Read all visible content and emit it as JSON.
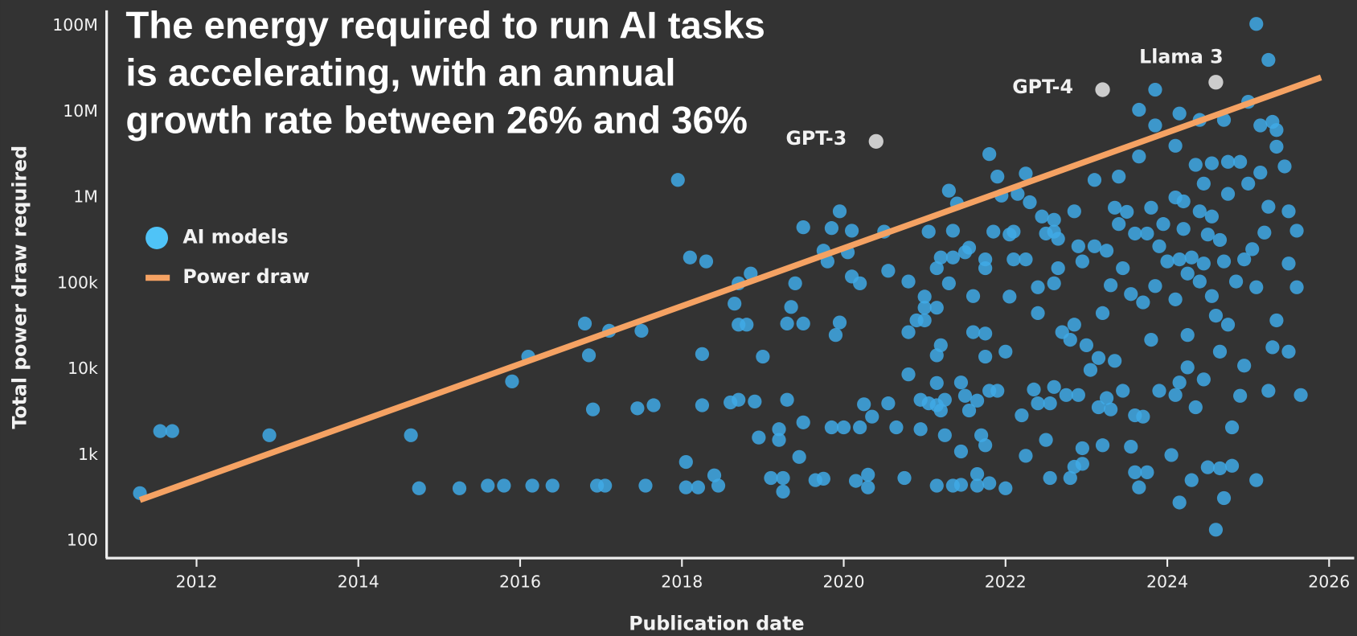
{
  "chart_data": {
    "type": "scatter",
    "title": "The energy required to run AI tasks is accelerating, with an annual growth rate between 26% and 36%",
    "xlabel": "Publication date",
    "ylabel": "Total power draw required",
    "log_y": true,
    "xlim": [
      2010.91,
      2026.31
    ],
    "xticks": [
      2012,
      2014,
      2016,
      2018,
      2020,
      2022,
      2024,
      2026
    ],
    "ylim": [
      63,
      151000000
    ],
    "yticks": [
      100,
      {
        "value": 1000,
        "label": "1k"
      },
      {
        "value": 10000,
        "label": "10k"
      },
      {
        "value": 100000,
        "label": "100k"
      },
      {
        "value": 1000000,
        "label": "1M"
      },
      {
        "value": 10000000,
        "label": "10M"
      },
      {
        "value": 100000000,
        "label": "100M"
      }
    ],
    "legend": "upper left",
    "series": [
      {
        "name": "AI models",
        "color": "#3fa9e6",
        "x": [
          2011.3,
          2011.55,
          2011.7,
          2012.9,
          2014.65,
          2014.75,
          2015.25,
          2015.6,
          2015.8,
          2015.9,
          2016.1,
          2016.15,
          2016.4,
          2016.8,
          2016.85,
          2016.9,
          2016.95,
          2017.05,
          2017.1,
          2017.45,
          2017.5,
          2017.55,
          2017.65,
          2017.95,
          2018.05,
          2018.05,
          2018.1,
          2018.2,
          2018.25,
          2018.25,
          2018.3,
          2018.4,
          2018.45,
          2018.6,
          2018.65,
          2018.7,
          2018.7,
          2018.7,
          2018.8,
          2018.85,
          2018.9,
          2018.95,
          2019.0,
          2019.1,
          2019.2,
          2019.2,
          2019.25,
          2019.25,
          2019.3,
          2019.3,
          2019.35,
          2019.4,
          2019.45,
          2019.5,
          2019.5,
          2019.5,
          2019.65,
          2019.75,
          2019.75,
          2019.8,
          2019.85,
          2019.85,
          2019.9,
          2019.95,
          2019.95,
          2020.0,
          2020.05,
          2020.1,
          2020.1,
          2020.15,
          2020.2,
          2020.2,
          2020.25,
          2020.3,
          2020.3,
          2020.35,
          2020.5,
          2020.55,
          2020.55,
          2020.65,
          2020.75,
          2020.8,
          2020.8,
          2020.8,
          2020.9,
          2020.95,
          2020.95,
          2021.0,
          2021.0,
          2021.0,
          2021.05,
          2021.05,
          2021.15,
          2021.15,
          2021.15,
          2021.15,
          2021.15,
          2021.15,
          2021.2,
          2021.2,
          2021.2,
          2021.25,
          2021.25,
          2021.3,
          2021.3,
          2021.35,
          2021.35,
          2021.35,
          2021.4,
          2021.45,
          2021.45,
          2021.45,
          2021.5,
          2021.5,
          2021.55,
          2021.55,
          2021.6,
          2021.6,
          2021.65,
          2021.65,
          2021.65,
          2021.7,
          2021.75,
          2021.75,
          2021.75,
          2021.75,
          2021.75,
          2021.8,
          2021.8,
          2021.8,
          2021.85,
          2021.9,
          2021.9,
          2021.95,
          2022.0,
          2022.0,
          2022.05,
          2022.05,
          2022.1,
          2022.1,
          2022.15,
          2022.2,
          2022.25,
          2022.25,
          2022.25,
          2022.3,
          2022.35,
          2022.4,
          2022.4,
          2022.4,
          2022.45,
          2022.5,
          2022.5,
          2022.55,
          2022.55,
          2022.6,
          2022.6,
          2022.6,
          2022.6,
          2022.65,
          2022.65,
          2022.7,
          2022.75,
          2022.8,
          2022.8,
          2022.85,
          2022.85,
          2022.85,
          2022.9,
          2022.9,
          2022.95,
          2022.95,
          2022.95,
          2023.0,
          2023.05,
          2023.1,
          2023.1,
          2023.15,
          2023.15,
          2023.2,
          2023.2,
          2023.25,
          2023.25,
          2023.3,
          2023.3,
          2023.35,
          2023.35,
          2023.4,
          2023.4,
          2023.45,
          2023.45,
          2023.5,
          2023.55,
          2023.55,
          2023.6,
          2023.6,
          2023.6,
          2023.65,
          2023.65,
          2023.65,
          2023.7,
          2023.7,
          2023.75,
          2023.75,
          2023.8,
          2023.8,
          2023.85,
          2023.85,
          2023.85,
          2023.9,
          2023.9,
          2023.95,
          2024.0,
          2024.05,
          2024.1,
          2024.1,
          2024.1,
          2024.1,
          2024.15,
          2024.15,
          2024.15,
          2024.15,
          2024.2,
          2024.2,
          2024.25,
          2024.25,
          2024.25,
          2024.3,
          2024.3,
          2024.35,
          2024.35,
          2024.4,
          2024.4,
          2024.4,
          2024.45,
          2024.45,
          2024.45,
          2024.5,
          2024.5,
          2024.55,
          2024.55,
          2024.55,
          2024.6,
          2024.6,
          2024.65,
          2024.65,
          2024.65,
          2024.7,
          2024.7,
          2024.7,
          2024.75,
          2024.75,
          2024.75,
          2024.8,
          2024.8,
          2024.85,
          2024.9,
          2024.9,
          2024.95,
          2024.95,
          2025.0,
          2025.0,
          2025.05,
          2025.1,
          2025.1,
          2025.1,
          2025.15,
          2025.15,
          2025.2,
          2025.25,
          2025.25,
          2025.25,
          2025.3,
          2025.3,
          2025.35,
          2025.35,
          2025.35,
          2025.45,
          2025.5,
          2025.5,
          2025.5,
          2025.6,
          2025.6,
          2025.65
        ],
        "values": [
          360,
          1900,
          1900,
          1700,
          1700,
          410,
          410,
          440,
          440,
          7200,
          14000,
          440,
          440,
          34000,
          14500,
          3400,
          440,
          440,
          28000,
          3500,
          28000,
          440,
          3800,
          1600000,
          830,
          420,
          200000,
          420,
          3800,
          15000,
          180000,
          580,
          440,
          4100,
          58000,
          33000,
          4400,
          100000,
          33000,
          130000,
          4200,
          1600,
          14000,
          540,
          2000,
          1500,
          540,
          375,
          4400,
          34000,
          53000,
          100000,
          950,
          2400,
          34000,
          450000,
          510,
          530,
          240000,
          180000,
          2100,
          440000,
          25000,
          35000,
          690000,
          2100,
          230000,
          120000,
          410000,
          500,
          2100,
          100000,
          3900,
          590,
          420,
          2800,
          400000,
          4000,
          140000,
          2100,
          540,
          105000,
          8700,
          27000,
          37000,
          2000,
          4400,
          70000,
          52000,
          37000,
          400000,
          4000,
          440,
          3800,
          14500,
          6900,
          150000,
          52000,
          3300,
          19000,
          200000,
          1700,
          4400,
          1200000,
          100000,
          410000,
          440,
          200000,
          850000,
          1100,
          450,
          7000,
          4900,
          230000,
          260000,
          3300,
          71000,
          27000,
          4300,
          440,
          600,
          1700,
          26000,
          150000,
          1300,
          190000,
          14000,
          3200000,
          5600,
          470,
          400000,
          1750000,
          5600,
          1050000,
          410,
          16000,
          370000,
          70000,
          190000,
          400000,
          1100000,
          2900,
          980,
          1900000,
          190000,
          880000,
          5800,
          45000,
          90000,
          4000,
          600000,
          1500,
          380000,
          540,
          4000,
          100000,
          550000,
          6200,
          400000,
          150000,
          330000,
          27000,
          5000,
          540,
          22000,
          690000,
          730,
          33000,
          5000,
          270000,
          1200,
          180000,
          790,
          19000,
          9800,
          270000,
          1600000,
          13500,
          3600,
          45000,
          1300,
          4600,
          240000,
          95000,
          3400,
          760000,
          12500,
          1750000,
          490000,
          5600,
          150000,
          680000,
          1250,
          75000,
          380000,
          2900,
          630,
          420,
          10500000,
          3000000,
          60000,
          2800,
          630,
          380000,
          22000,
          760000,
          93000,
          18000000,
          6900000,
          5600,
          270000,
          490000,
          180000,
          1000,
          5000,
          65000,
          1000000,
          4000000,
          9500000,
          280,
          190000,
          7000,
          900000,
          430000,
          25000,
          10500,
          130000,
          200000,
          510,
          2400000,
          3600,
          105000,
          8000000,
          690000,
          7600,
          170000,
          1450000,
          370000,
          720,
          71000,
          2500000,
          600000,
          135,
          42000,
          700,
          16000,
          320000,
          180000,
          8000000,
          315,
          2600000,
          33000,
          1100000,
          2100,
          750,
          105000,
          4900,
          2600000,
          11000,
          190000,
          13000000,
          1450000,
          250000,
          90000,
          510,
          105000000,
          6900000,
          1950000,
          390000,
          40000000,
          5600,
          780000,
          18000,
          7600000,
          37000,
          6100000,
          3900000,
          2300000,
          690000,
          16000,
          170000,
          410000,
          90000,
          5000
        ]
      },
      {
        "name": "Power draw",
        "type": "line",
        "color": "#f5a263",
        "x": [
          2011.3,
          2025.9
        ],
        "values": [
          300,
          25000000
        ]
      }
    ],
    "annotations": [
      {
        "text": "GPT-3",
        "x": 2020.4,
        "y": 4500000,
        "label_position": "left"
      },
      {
        "text": "GPT-4",
        "x": 2023.2,
        "y": 18000000,
        "label_position": "left"
      },
      {
        "text": "Llama 3",
        "x": 2024.6,
        "y": 22000000,
        "label_position": "above"
      }
    ],
    "annotation_color": "#cccccc"
  }
}
